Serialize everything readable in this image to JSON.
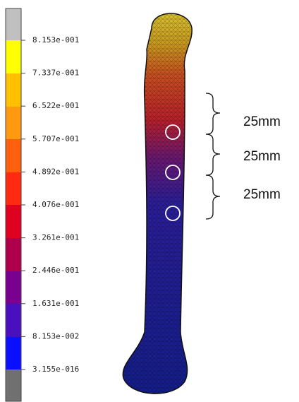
{
  "legend": {
    "labels": [
      "8.153e-001",
      "7.337e-001",
      "6.522e-001",
      "5.707e-001",
      "4.892e-001",
      "4.076e-001",
      "3.261e-001",
      "2.446e-001",
      "1.631e-001",
      "8.153e-002",
      "3.155e-016"
    ]
  },
  "annotations": [
    "25mm",
    "25mm",
    "25mm"
  ]
}
